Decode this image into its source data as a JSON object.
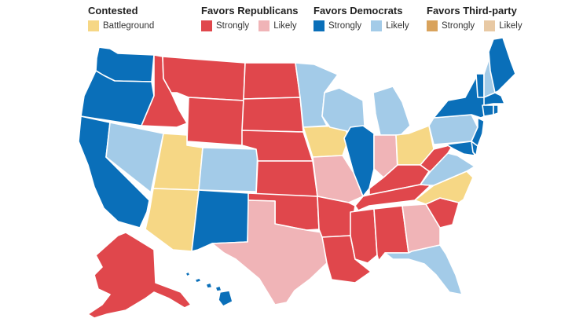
{
  "colors": {
    "battleground": "#f6d785",
    "rep_strongly": "#e0474c",
    "rep_likely": "#f0b4b7",
    "dem_strongly": "#0a6fb9",
    "dem_likely": "#a3cbe8",
    "third_strongly": "#d9a35c",
    "third_likely": "#e8c9a4"
  },
  "legend": {
    "contested": {
      "title": "Contested",
      "items": [
        {
          "label": "Battleground",
          "color": "#f6d785"
        }
      ]
    },
    "republicans": {
      "title": "Favors Republicans",
      "items": [
        {
          "label": "Strongly",
          "color": "#e0474c"
        },
        {
          "label": "Likely",
          "color": "#f0b4b7"
        }
      ]
    },
    "democrats": {
      "title": "Favors Democrats",
      "items": [
        {
          "label": "Strongly",
          "color": "#0a6fb9"
        },
        {
          "label": "Likely",
          "color": "#a3cbe8"
        }
      ]
    },
    "third_party": {
      "title": "Favors Third-party",
      "items": [
        {
          "label": "Strongly",
          "color": "#d9a35c"
        },
        {
          "label": "Likely",
          "color": "#e8c9a4"
        }
      ]
    }
  },
  "states": {
    "WA": "dem_strongly",
    "OR": "dem_strongly",
    "CA": "dem_strongly",
    "NM": "dem_strongly",
    "IL": "dem_strongly",
    "NY": "dem_strongly",
    "VT": "dem_strongly",
    "ME": "dem_strongly",
    "MA": "dem_strongly",
    "CT": "dem_strongly",
    "RI": "dem_strongly",
    "NJ": "dem_strongly",
    "DE": "dem_strongly",
    "MD": "dem_strongly",
    "HI": "dem_strongly",
    "NV": "dem_likely",
    "CO": "dem_likely",
    "MN": "dem_likely",
    "WI": "dem_likely",
    "MI": "dem_likely",
    "PA": "dem_likely",
    "VA": "dem_likely",
    "FL": "dem_likely",
    "NH": "dem_likely",
    "UT": "battleground",
    "AZ": "battleground",
    "IA": "battleground",
    "OH": "battleground",
    "NC": "battleground",
    "ID": "rep_strongly",
    "MT": "rep_strongly",
    "WY": "rep_strongly",
    "ND": "rep_strongly",
    "SD": "rep_strongly",
    "NE": "rep_strongly",
    "KS": "rep_strongly",
    "OK": "rep_strongly",
    "AR": "rep_strongly",
    "LA": "rep_strongly",
    "MS": "rep_strongly",
    "AL": "rep_strongly",
    "TN": "rep_strongly",
    "KY": "rep_strongly",
    "WV": "rep_strongly",
    "SC": "rep_strongly",
    "AK": "rep_strongly",
    "TX": "rep_likely",
    "MO": "rep_likely",
    "IN": "rep_likely",
    "GA": "rep_likely"
  }
}
